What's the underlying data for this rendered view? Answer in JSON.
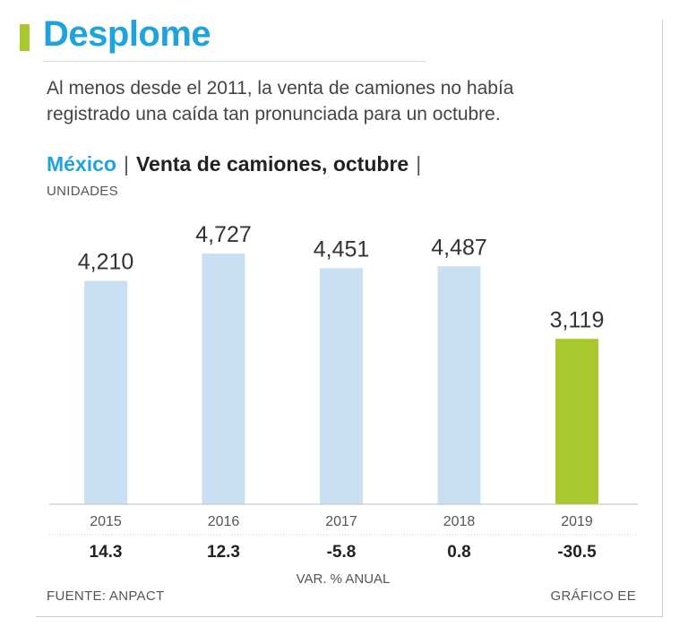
{
  "header": {
    "title": "Desplome",
    "subtitle": "Al menos desde el 2011, la venta de camiones no había registrado una caída tan pronunciada para un octubre.",
    "country": "México",
    "separator": "|",
    "chart_title": "Venta de camiones, octubre",
    "units": "UNIDADES"
  },
  "footer": {
    "source": "FUENTE: ANPACT",
    "credit": "GRÁFICO EE"
  },
  "colors": {
    "accent": "#a9c82d",
    "title": "#1ea3dc",
    "bar": "#c9e0f4",
    "highlight": "#a9c82d",
    "text": "#333333",
    "rule": "#cfcfcf"
  },
  "chart_data": {
    "type": "bar",
    "categories": [
      "2015",
      "2016",
      "2017",
      "2018",
      "2019"
    ],
    "values": [
      4210,
      4727,
      4451,
      4487,
      3119
    ],
    "value_labels": [
      "4,210",
      "4,727",
      "4,451",
      "4,487",
      "3,119"
    ],
    "highlight_index": 4,
    "ylim": [
      0,
      5150
    ],
    "grid": false,
    "secondary_row": {
      "label": "VAR. % ANUAL",
      "values": [
        "14.3",
        "12.3",
        "-5.8",
        "0.8",
        "-30.5"
      ]
    }
  }
}
